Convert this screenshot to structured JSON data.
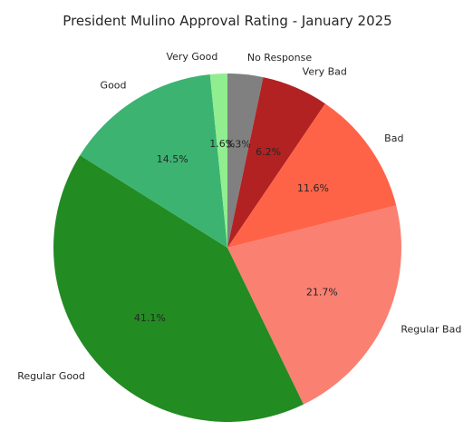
{
  "chart_data": {
    "type": "pie",
    "title": "President Mulino Approval Rating - January 2025",
    "categories": [
      "No Response",
      "Very Bad",
      "Bad",
      "Regular Bad",
      "Regular Good",
      "Good",
      "Very Good"
    ],
    "values": [
      3.3,
      6.2,
      11.6,
      21.7,
      41.1,
      14.5,
      1.6
    ],
    "value_labels": [
      "3.3%",
      "6.2%",
      "11.6%",
      "21.7%",
      "41.1%",
      "14.5%",
      "1.6%"
    ],
    "colors": [
      "#808080",
      "#b22222",
      "#ff6347",
      "#fa8072",
      "#228b22",
      "#3cb371",
      "#90ee90"
    ],
    "start_angle_deg": 90,
    "direction": "clockwise",
    "legend": "none"
  }
}
